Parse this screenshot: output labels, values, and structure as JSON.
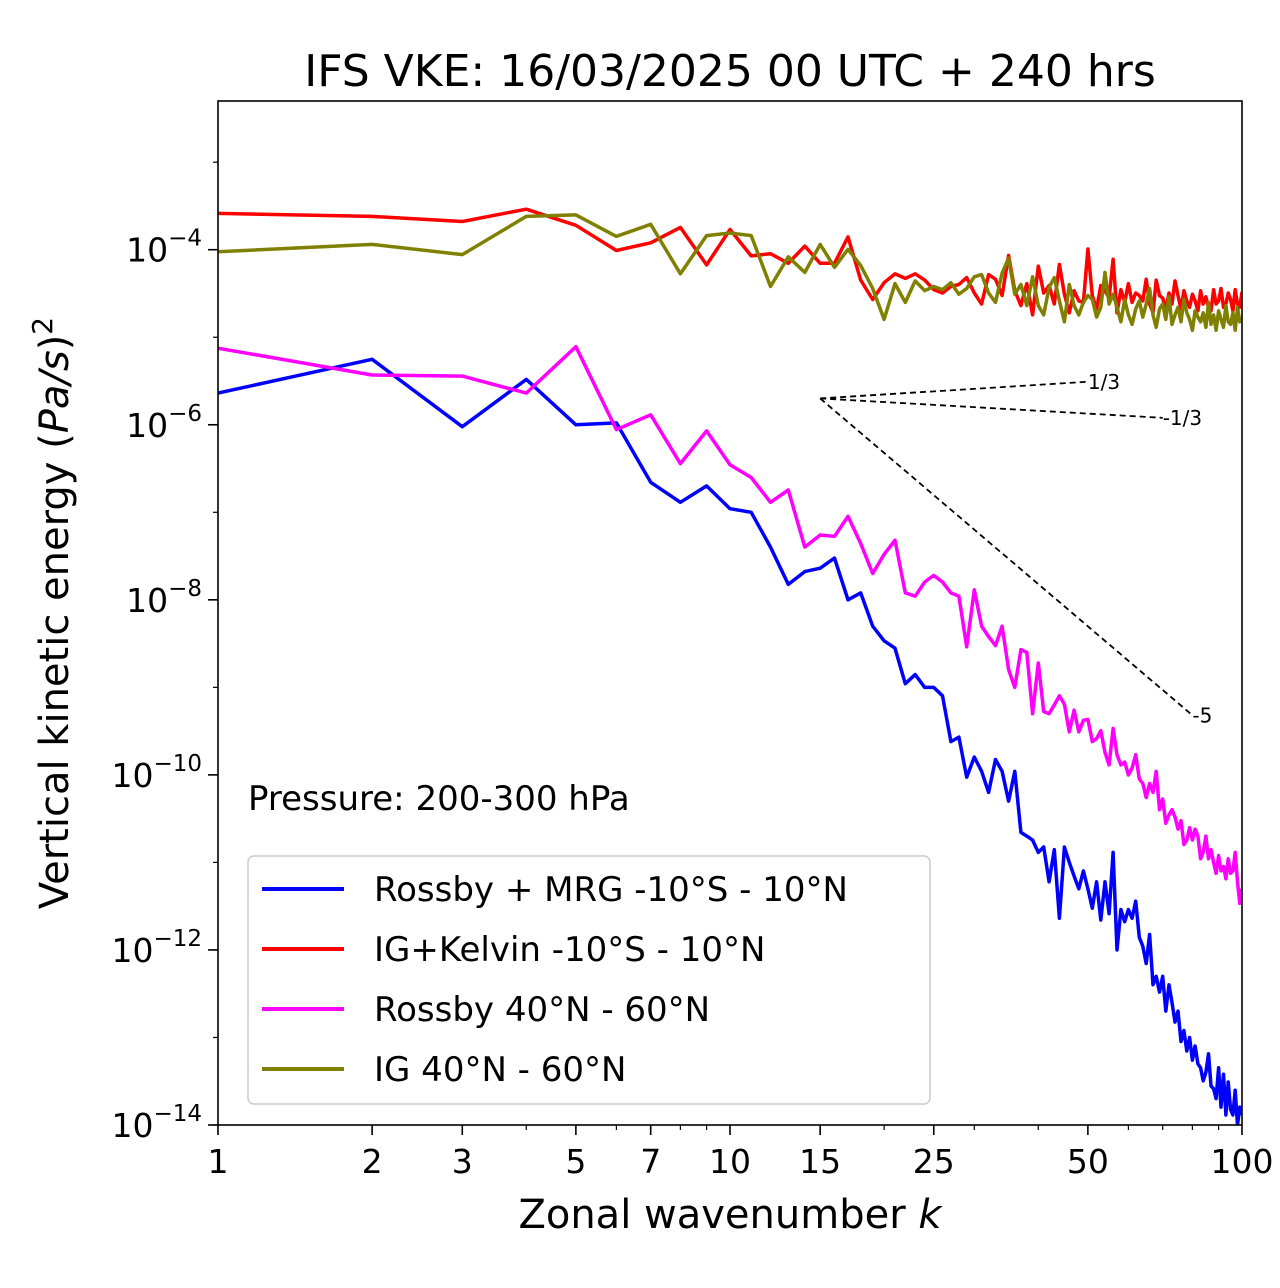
{
  "chart_data": {
    "type": "line",
    "title": "IFS VKE: 16/03/2025 00 UTC + 240 hrs",
    "xlabel": "Zonal wavenumber k",
    "ylabel": "Vertical kinetic energy (Pa/s)^2",
    "xscale": "log",
    "yscale": "log",
    "xlim": [
      1,
      100
    ],
    "ylim": [
      1e-14,
      0.005
    ],
    "xticks": [
      1,
      2,
      3,
      5,
      7,
      10,
      15,
      25,
      50,
      100
    ],
    "xtick_labels": [
      "1",
      "2",
      "3",
      "5",
      "7",
      "10",
      "15",
      "25",
      "50",
      "100"
    ],
    "yticks": [
      1e-14,
      1e-12,
      1e-10,
      1e-08,
      1e-06,
      0.0001
    ],
    "ytick_labels": [
      {
        "base": "10",
        "exp": "−14"
      },
      {
        "base": "10",
        "exp": "−12"
      },
      {
        "base": "10",
        "exp": "−10"
      },
      {
        "base": "10",
        "exp": "−8"
      },
      {
        "base": "10",
        "exp": "−6"
      },
      {
        "base": "10",
        "exp": "−4"
      }
    ],
    "annotation": "Pressure: 200-300 hPa",
    "legend_location": "lower-left",
    "reference_lines": [
      {
        "label": "1/3",
        "from": [
          15,
          2e-06
        ],
        "to": [
          50,
          3.1e-06
        ]
      },
      {
        "label": "-1/3",
        "from": [
          15,
          2e-06
        ],
        "to": [
          70,
          1.2e-06
        ]
      },
      {
        "label": "-5",
        "from": [
          15,
          2e-06
        ],
        "to": [
          80,
          4.8e-10
        ]
      }
    ],
    "series": [
      {
        "name": "Rossby + MRG -10°S - 10°N",
        "color": "#0000ff",
        "x": [
          1,
          2,
          3,
          4,
          5,
          6,
          7,
          8,
          9,
          10,
          11,
          12,
          13,
          14,
          15,
          16,
          17,
          18,
          19,
          20,
          21,
          22,
          23,
          24,
          25,
          26,
          27,
          28,
          29,
          30,
          31,
          32,
          33,
          34,
          35,
          36,
          37,
          38,
          39,
          40,
          41,
          42,
          43,
          44,
          45,
          46,
          47,
          48,
          49,
          50,
          51,
          52,
          53,
          54,
          55,
          56,
          57,
          58,
          59,
          60,
          61,
          62,
          63,
          64,
          65,
          66,
          67,
          68,
          69,
          70,
          71,
          72,
          73,
          74,
          75,
          76,
          77,
          78,
          79,
          80,
          81,
          82,
          83,
          84,
          85,
          86,
          87,
          88,
          89,
          90,
          91,
          92,
          93,
          94,
          95,
          96,
          97,
          98,
          99,
          100
        ],
        "y": [
          2.3e-06,
          5.6e-06,
          9.5e-07,
          3.3e-06,
          1e-06,
          1.05e-06,
          2.2e-07,
          1.3e-07,
          2e-07,
          1.1e-07,
          1e-07,
          4e-08,
          1.5e-08,
          2.1e-08,
          2.3e-08,
          3e-08,
          1e-08,
          1.2e-08,
          5e-09,
          3.4e-09,
          2.8e-09,
          1.1e-09,
          1.4e-09,
          1e-09,
          1e-09,
          8e-10,
          2.4e-10,
          2.7e-10,
          9.4e-11,
          1.6e-10,
          1.1e-10,
          6.3e-11,
          1.5e-10,
          1.1e-10,
          5e-11,
          1.1e-10,
          2.2e-11,
          2e-11,
          1.8e-11,
          1.3e-11,
          1.5e-11,
          6e-12,
          1.4e-11,
          2.3e-12,
          1.5e-11,
          1e-11,
          7e-12,
          5e-12,
          8e-12,
          5e-12,
          3e-12,
          6e-12,
          2.2e-12,
          6e-12,
          2.6e-12,
          1.3e-11,
          1e-12,
          2.9e-12,
          2.1e-12,
          2.9e-12,
          2.3e-12,
          3.6e-12,
          1.4e-12,
          1.1e-12,
          7e-13,
          1.5e-12,
          4e-13,
          5e-13,
          3.3e-13,
          5e-13,
          2e-13,
          4e-13,
          2.5e-13,
          1.5e-13,
          2e-13,
          9e-14,
          1.2e-13,
          7e-14,
          1e-13,
          5.5e-14,
          8e-14,
          5e-14,
          4.5e-14,
          3.2e-14,
          4e-14,
          6.5e-14,
          2.8e-14,
          2.6e-14,
          2e-14,
          4.5e-14,
          1.6e-14,
          3.8e-14,
          1.3e-14,
          3.1e-14,
          1.5e-14,
          1.3e-14,
          2.5e-14,
          1e-14,
          1.6e-14,
          1.3e-14
        ]
      },
      {
        "name": "IG+Kelvin -10°S - 10°N",
        "color": "#ff0000",
        "x": [
          1,
          2,
          3,
          4,
          5,
          6,
          7,
          8,
          9,
          10,
          11,
          12,
          13,
          14,
          15,
          16,
          17,
          18,
          19,
          20,
          21,
          22,
          23,
          24,
          25,
          26,
          27,
          28,
          29,
          30,
          31,
          32,
          33,
          34,
          35,
          36,
          37,
          38,
          39,
          40,
          41,
          42,
          43,
          44,
          45,
          46,
          47,
          48,
          49,
          50,
          51,
          52,
          53,
          54,
          55,
          56,
          57,
          58,
          59,
          60,
          61,
          62,
          63,
          64,
          65,
          66,
          67,
          68,
          69,
          70,
          71,
          72,
          73,
          74,
          75,
          76,
          77,
          78,
          79,
          80,
          81,
          82,
          83,
          84,
          85,
          86,
          87,
          88,
          89,
          90,
          91,
          92,
          93,
          94,
          95,
          96,
          97,
          98,
          99,
          100
        ],
        "y": [
          0.00026,
          0.00024,
          0.00021,
          0.00029,
          0.00019,
          9.8e-05,
          0.00012,
          0.00018,
          6.7e-05,
          0.00017,
          8.5e-05,
          9e-05,
          7e-05,
          0.00011,
          7e-05,
          7e-05,
          0.00014,
          4.5e-05,
          2.7e-05,
          4.2e-05,
          5.3e-05,
          4.7e-05,
          5.3e-05,
          4.5e-05,
          3.5e-05,
          3.2e-05,
          3.8e-05,
          4e-05,
          4.8e-05,
          3.2e-05,
          2.4e-05,
          5.2e-05,
          4.6e-05,
          3e-05,
          8.6e-05,
          3.4e-05,
          2.3e-05,
          4.1e-05,
          1.8e-05,
          6.5e-05,
          3.2e-05,
          3.9e-05,
          2.4e-05,
          6.8e-05,
          3.1e-05,
          1.9e-05,
          3.4e-05,
          2.6e-05,
          2.5e-05,
          0.000102,
          3e-05,
          2.1e-05,
          3.9e-05,
          3.4e-05,
          2.8e-05,
          7.8e-05,
          1.9e-05,
          3.5e-05,
          2.5e-05,
          4.1e-05,
          2.5e-05,
          3.2e-05,
          3e-05,
          2.6e-05,
          4.6e-05,
          2.4e-05,
          1.9e-05,
          4.5e-05,
          3e-05,
          2.8e-05,
          2.1e-05,
          3.2e-05,
          2.4e-05,
          4.4e-05,
          3e-05,
          2.1e-05,
          3.4e-05,
          2.6e-05,
          2.2e-05,
          3.1e-05,
          2.6e-05,
          2e-05,
          3.4e-05,
          2.4e-05,
          2.9e-05,
          2.2e-05,
          2e-05,
          3.5e-05,
          2.4e-05,
          2.6e-05,
          3.6e-05,
          2.2e-05,
          2.4e-05,
          3.2e-05,
          2.7e-05,
          2e-05,
          3.5e-05,
          2.4e-05,
          2.2e-05,
          3.3e-05
        ]
      },
      {
        "name": "Rossby 40°N - 60°N",
        "color": "#ff00ff",
        "x": [
          1,
          2,
          3,
          4,
          5,
          6,
          7,
          8,
          9,
          10,
          11,
          12,
          13,
          14,
          15,
          16,
          17,
          18,
          19,
          20,
          21,
          22,
          23,
          24,
          25,
          26,
          27,
          28,
          29,
          30,
          31,
          32,
          33,
          34,
          35,
          36,
          37,
          38,
          39,
          40,
          41,
          42,
          43,
          44,
          45,
          46,
          47,
          48,
          49,
          50,
          51,
          52,
          53,
          54,
          55,
          56,
          57,
          58,
          59,
          60,
          61,
          62,
          63,
          64,
          65,
          66,
          67,
          68,
          69,
          70,
          71,
          72,
          73,
          74,
          75,
          76,
          77,
          78,
          79,
          80,
          81,
          82,
          83,
          84,
          85,
          86,
          87,
          88,
          89,
          90,
          91,
          92,
          93,
          94,
          95,
          96,
          97,
          98,
          99,
          100
        ],
        "y": [
          7.5e-06,
          3.7e-06,
          3.6e-06,
          2.3e-06,
          7.8e-06,
          8.8e-07,
          1.3e-06,
          3.6e-07,
          8.5e-07,
          3.5e-07,
          2.5e-07,
          1.3e-07,
          1.8e-07,
          4e-08,
          5.5e-08,
          5.3e-08,
          9e-08,
          4.4e-08,
          2e-08,
          3.3e-08,
          4.8e-08,
          1.2e-08,
          1.1e-08,
          1.6e-08,
          1.9e-08,
          1.6e-08,
          1.2e-08,
          1.1e-08,
          2.9e-09,
          1.3e-08,
          5e-09,
          3.8e-09,
          3e-09,
          5e-09,
          1.6e-09,
          1e-09,
          2.7e-09,
          2.5e-09,
          5e-10,
          1.9e-09,
          5.3e-10,
          5e-10,
          6.3e-10,
          8e-10,
          6.4e-10,
          3.1e-10,
          5.5e-10,
          3.1e-10,
          4.2e-10,
          4.3e-10,
          2.4e-10,
          2.6e-10,
          3.2e-10,
          1.8e-10,
          1.3e-10,
          3.4e-10,
          1.7e-10,
          1.3e-10,
          1.4e-10,
          1e-10,
          1.2e-10,
          1.7e-10,
          9e-11,
          8e-11,
          5.5e-11,
          8e-11,
          6.3e-11,
          1.1e-10,
          4e-11,
          5.3e-11,
          2.8e-11,
          3.5e-11,
          4e-11,
          3.3e-11,
          2.4e-11,
          3e-11,
          1.6e-11,
          1.8e-11,
          2.5e-11,
          1.8e-11,
          2.4e-11,
          2e-11,
          1.1e-11,
          1.3e-11,
          2e-11,
          1.1e-11,
          1.4e-11,
          1e-11,
          7.5e-12,
          1.2e-11,
          8e-12,
          9e-12,
          6.5e-12,
          1.1e-11,
          7.5e-12,
          8e-12,
          1.3e-11,
          6e-12,
          3.4e-12,
          5e-12
        ]
      },
      {
        "name": "IG 40°N - 60°N",
        "color": "#808000",
        "x": [
          1,
          2,
          3,
          4,
          5,
          6,
          7,
          8,
          9,
          10,
          11,
          12,
          13,
          14,
          15,
          16,
          17,
          18,
          19,
          20,
          21,
          22,
          23,
          24,
          25,
          26,
          27,
          28,
          29,
          30,
          31,
          32,
          33,
          34,
          35,
          36,
          37,
          38,
          39,
          40,
          41,
          42,
          43,
          44,
          45,
          46,
          47,
          48,
          49,
          50,
          51,
          52,
          53,
          54,
          55,
          56,
          57,
          58,
          59,
          60,
          61,
          62,
          63,
          64,
          65,
          66,
          67,
          68,
          69,
          70,
          71,
          72,
          73,
          74,
          75,
          76,
          77,
          78,
          79,
          80,
          81,
          82,
          83,
          84,
          85,
          86,
          87,
          88,
          89,
          90,
          91,
          92,
          93,
          94,
          95,
          96,
          97,
          98,
          99,
          100
        ],
        "y": [
          9.5e-05,
          0.000115,
          8.8e-05,
          0.00024,
          0.00025,
          0.000142,
          0.000195,
          5.3e-05,
          0.000145,
          0.000155,
          0.000145,
          3.8e-05,
          8.3e-05,
          5.5e-05,
          0.000115,
          6.3e-05,
          0.000101,
          6.6e-05,
          3.6e-05,
          1.6e-05,
          4.1e-05,
          2.5e-05,
          4.4e-05,
          3.4e-05,
          3.8e-05,
          3.5e-05,
          4.2e-05,
          3.1e-05,
          3.6e-05,
          4.9e-05,
          5.2e-05,
          3.2e-05,
          2.5e-05,
          5.4e-05,
          8e-05,
          3.1e-05,
          4e-05,
          2.3e-05,
          4.9e-05,
          2.3e-05,
          1.8e-05,
          3.7e-05,
          4.8e-05,
          2.6e-05,
          1.5e-05,
          4e-05,
          2.3e-05,
          1.8e-05,
          2.5e-05,
          3e-05,
          2.7e-05,
          1.7e-05,
          2.2e-05,
          5.5e-05,
          2.4e-05,
          3.1e-05,
          2.2e-05,
          1.5e-05,
          2.7e-05,
          1.8e-05,
          1.4e-05,
          2.1e-05,
          2.6e-05,
          1.7e-05,
          2.4e-05,
          3.6e-05,
          1.8e-05,
          1.3e-05,
          2.1e-05,
          2.4e-05,
          1.6e-05,
          2.9e-05,
          1.4e-05,
          1.8e-05,
          2.2e-05,
          1.5e-05,
          2.7e-05,
          1.9e-05,
          1.6e-05,
          1.2e-05,
          2e-05,
          1.7e-05,
          1.5e-05,
          1.9e-05,
          1.3e-05,
          2.5e-05,
          1.4e-05,
          1.8e-05,
          1.2e-05,
          2e-05,
          1.6e-05,
          1.3e-05,
          2.3e-05,
          1.5e-05,
          1.4e-05,
          1.9e-05,
          1.2e-05,
          2.2e-05,
          1.5e-05,
          1.7e-05
        ]
      }
    ]
  },
  "ylabel_parts": {
    "main": "Vertical kinetic energy (",
    "italic": "Pa/s",
    "close": ")",
    "sup": "2"
  },
  "xlabel_parts": {
    "main": "Zonal wavenumber ",
    "italic": "k"
  }
}
